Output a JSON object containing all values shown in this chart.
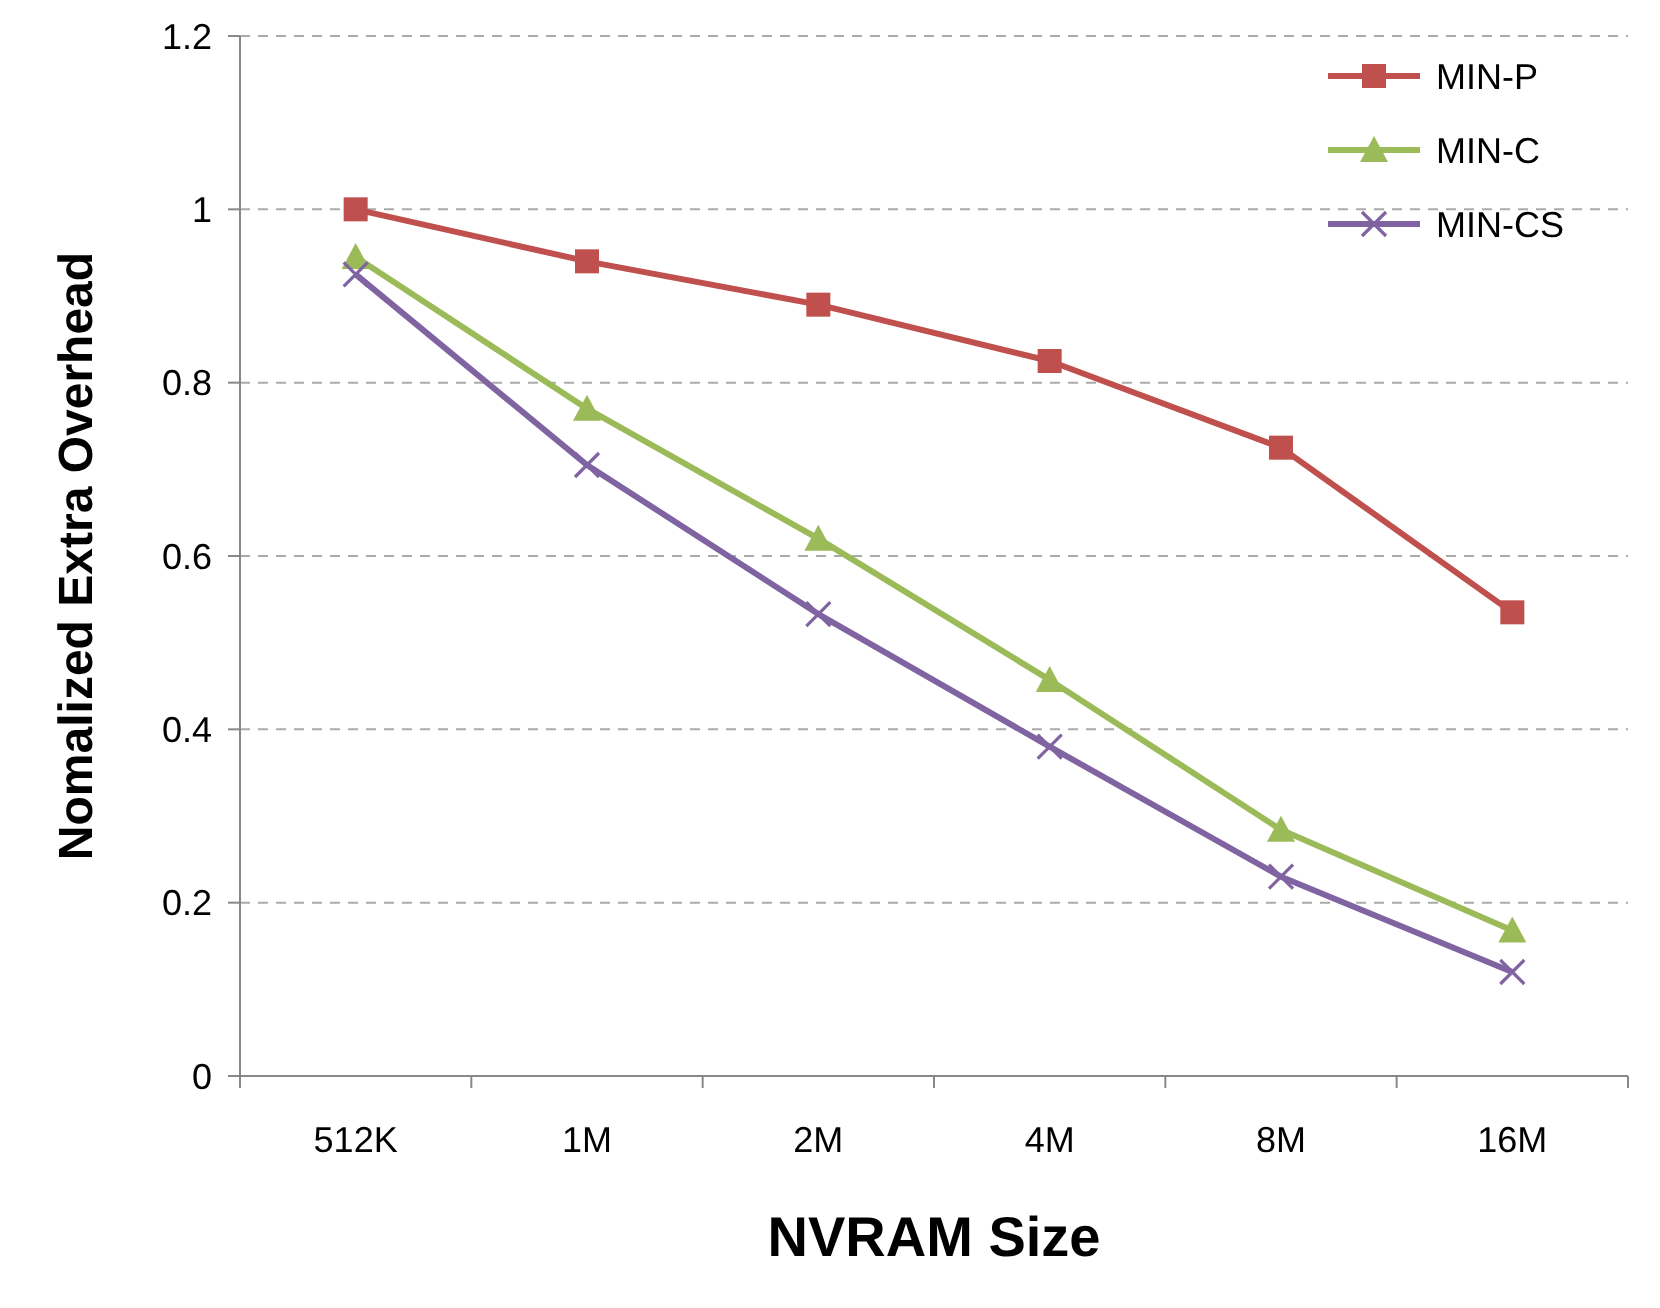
{
  "chart_data": {
    "type": "line",
    "xlabel": "NVRAM Size",
    "ylabel": "Nomalized Extra Overhead",
    "categories": [
      "512K",
      "1M",
      "2M",
      "4M",
      "8M",
      "16M"
    ],
    "series": [
      {
        "name": "MIN-P",
        "color": "#c0504d",
        "marker": "square",
        "values": [
          1.0,
          0.94,
          0.89,
          0.825,
          0.725,
          0.535
        ]
      },
      {
        "name": "MIN-C",
        "color": "#9bbb59",
        "marker": "triangle",
        "values": [
          0.945,
          0.77,
          0.62,
          0.457,
          0.284,
          0.168
        ]
      },
      {
        "name": "MIN-CS",
        "color": "#8064a2",
        "marker": "cross",
        "values": [
          0.925,
          0.705,
          0.533,
          0.38,
          0.23,
          0.12
        ]
      }
    ],
    "ylim": [
      0,
      1.2
    ],
    "yticks": [
      0,
      0.2,
      0.4,
      0.6,
      0.8,
      1,
      1.2
    ],
    "grid": "y",
    "legend": "top right",
    "line_style": "solid"
  }
}
